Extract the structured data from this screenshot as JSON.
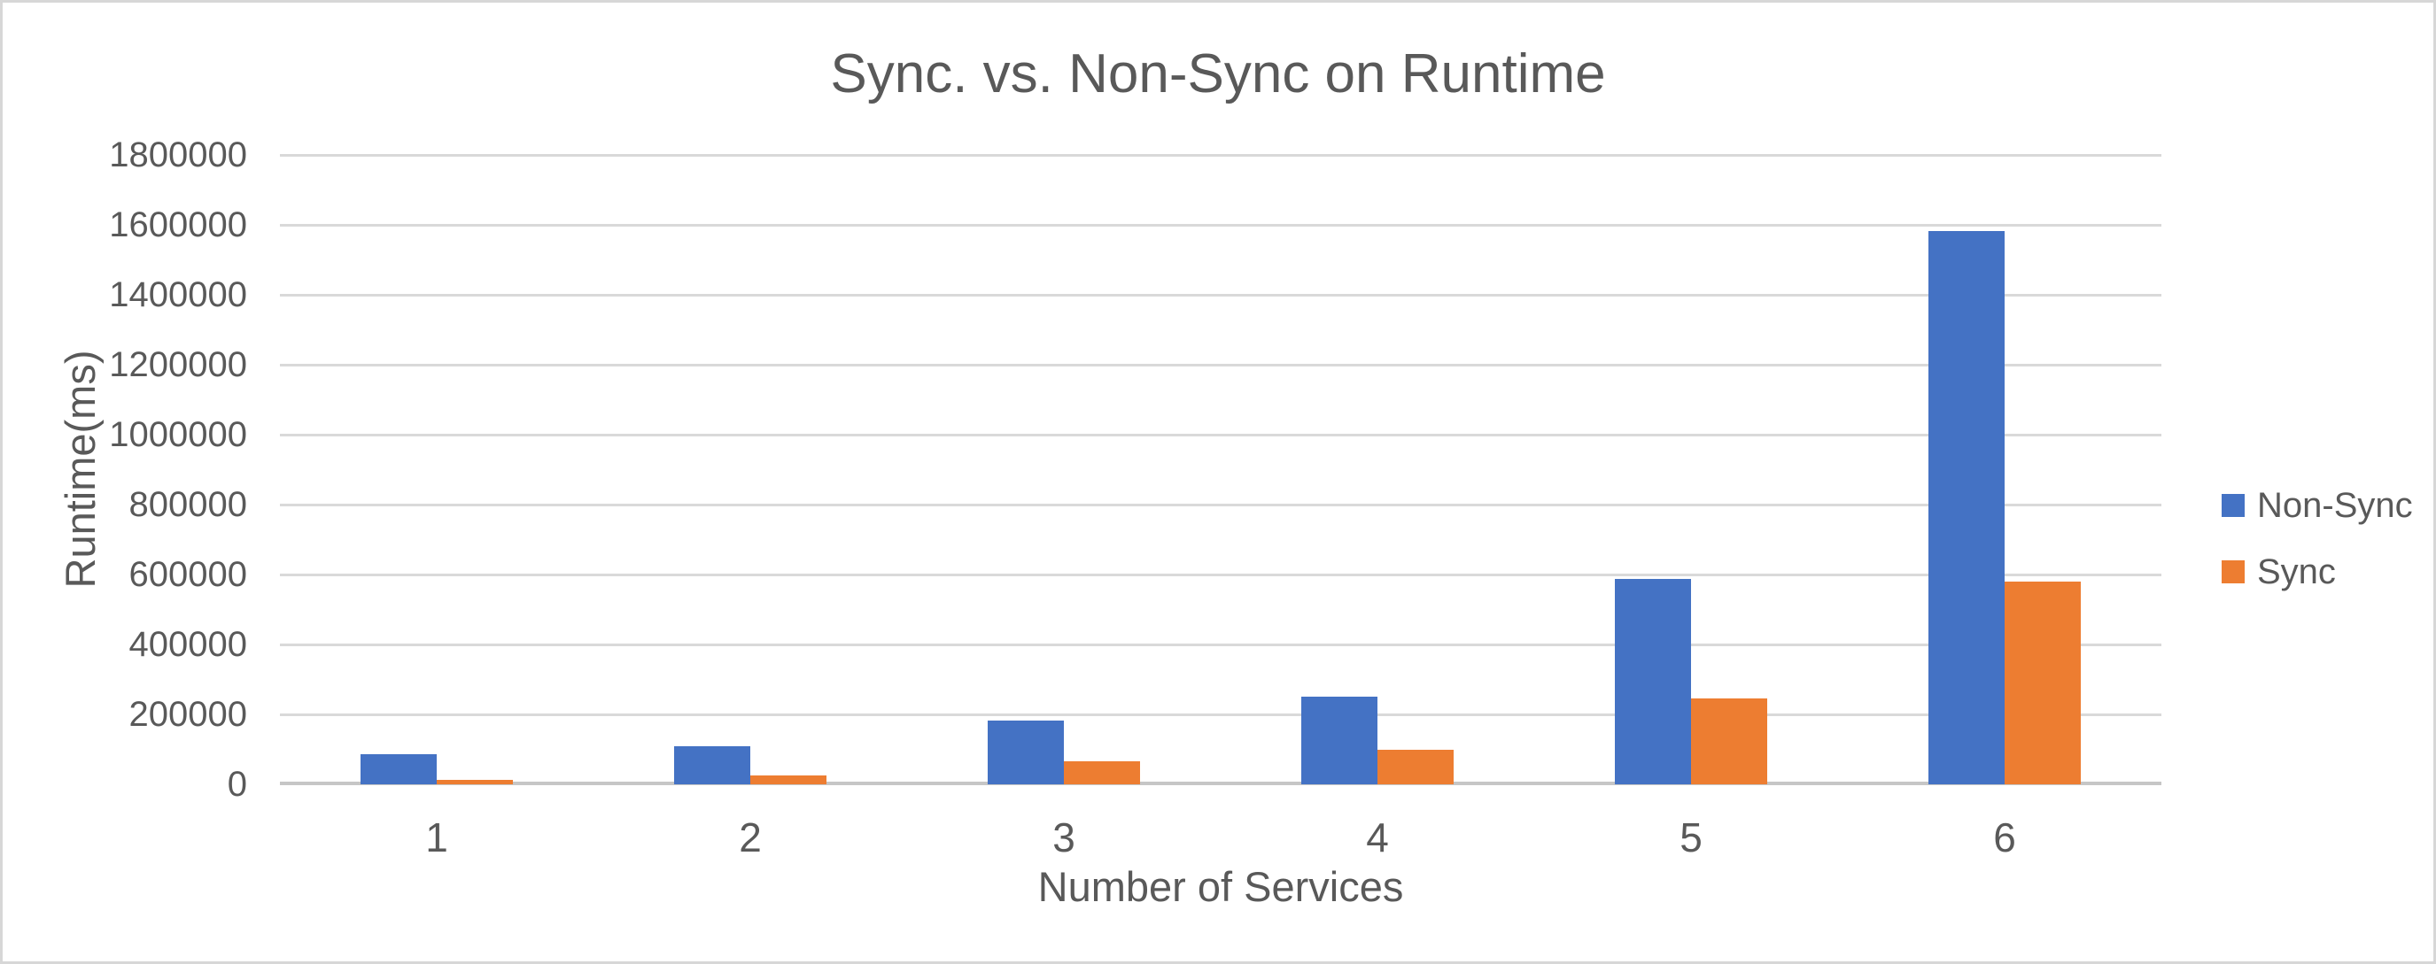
{
  "frame": {
    "background": "#ffffff",
    "border_color": "#d7d7d7"
  },
  "chart_data": {
    "type": "bar",
    "title": "Sync. vs. Non-Sync on Runtime",
    "xlabel": "Number of Services",
    "ylabel": "Runtime(ms)",
    "categories": [
      "1",
      "2",
      "3",
      "4",
      "5",
      "6"
    ],
    "series": [
      {
        "name": "Non-Sync",
        "color": "#4472C4",
        "values": [
          85000,
          110000,
          182000,
          250000,
          587000,
          1583000
        ]
      },
      {
        "name": "Sync",
        "color": "#ED7D31",
        "values": [
          12000,
          25000,
          65000,
          100000,
          245000,
          580000
        ]
      }
    ],
    "ylim": [
      0,
      1800000
    ],
    "y_ticks": [
      0,
      200000,
      400000,
      600000,
      800000,
      1000000,
      1200000,
      1400000,
      1600000,
      1800000
    ],
    "grid": "horizontal",
    "legend_position": "right",
    "colors": {
      "text": "#595959",
      "gridline": "#d9d9d9",
      "baseline": "#c6c6c6"
    }
  }
}
